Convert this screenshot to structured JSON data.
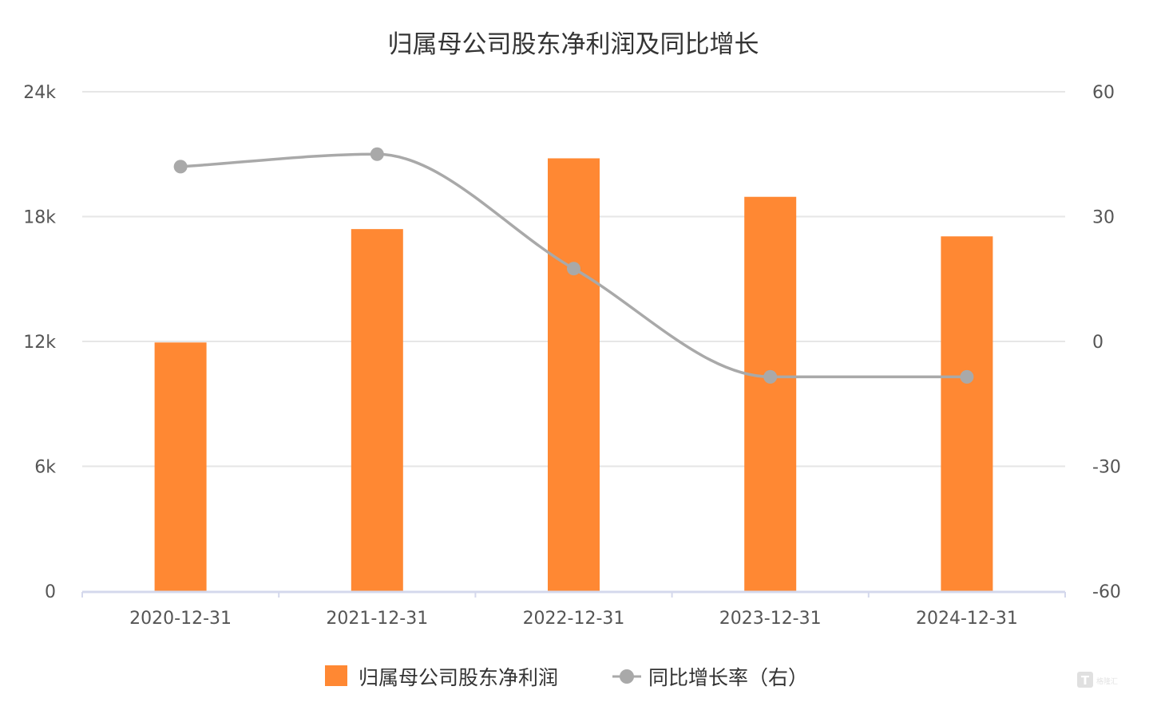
{
  "chart_data": {
    "type": "bar+line",
    "title": "归属母公司股东净利润及同比增长",
    "categories": [
      "2020-12-31",
      "2021-12-31",
      "2022-12-31",
      "2023-12-31",
      "2024-12-31"
    ],
    "series": [
      {
        "name": "归属母公司股东净利润",
        "type": "bar",
        "axis": "left",
        "values": [
          11950,
          17400,
          20800,
          18950,
          17050
        ]
      },
      {
        "name": "同比增长率（右）",
        "type": "line",
        "axis": "right",
        "values": [
          42,
          45,
          17.5,
          -8.5,
          -8.5
        ]
      }
    ],
    "y_left": {
      "min": 0,
      "max": 24000,
      "ticks": [
        0,
        6000,
        12000,
        18000,
        24000
      ],
      "tick_labels": [
        "0",
        "6k",
        "12k",
        "18k",
        "24k"
      ]
    },
    "y_right": {
      "min": -60,
      "max": 60,
      "ticks": [
        -60,
        -30,
        0,
        30,
        60
      ],
      "tick_labels": [
        "-60",
        "-30",
        "0",
        "30",
        "60"
      ]
    },
    "grid": true,
    "legend_position": "bottom-center",
    "colors": {
      "bar": "#FF8833",
      "line": "#A9A9A9",
      "grid": "#E6E6E6",
      "axis": "#D4D8EC",
      "text": "#555555",
      "title": "#333333"
    }
  },
  "watermark": {
    "icon": "t-logo-icon",
    "text": "格隆汇"
  }
}
